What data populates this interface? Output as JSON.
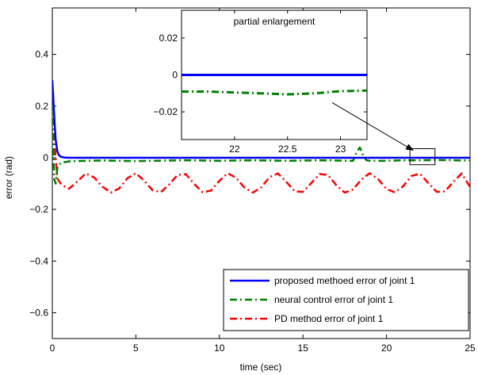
{
  "chart_data": {
    "type": "line",
    "xlabel": "time (sec)",
    "ylabel": "error (rad)",
    "xlim": [
      0,
      25
    ],
    "ylim": [
      -0.7,
      0.58
    ],
    "xticks": [
      0,
      5,
      10,
      15,
      20,
      25
    ],
    "xtick_labels": [
      "0",
      "5",
      "10",
      "15",
      "20",
      "25"
    ],
    "yticks": [
      -0.6,
      -0.4,
      -0.2,
      0,
      0.2,
      0.4
    ],
    "ytick_labels": [
      "−0.6",
      "−0.4",
      "−0.2",
      "0",
      "0.2",
      "0.4"
    ],
    "grid": false,
    "legend_position": "bottom-right",
    "series": [
      {
        "name": "proposed methoed error of joint 1",
        "color": "#0000ff",
        "style": "solid",
        "x": [
          0,
          0.05,
          0.1,
          0.15,
          0.2,
          0.3,
          0.4,
          0.5,
          0.7,
          1,
          2,
          5,
          10,
          15,
          20,
          25
        ],
        "y": [
          0.3,
          0.24,
          0.18,
          0.12,
          0.07,
          0.025,
          0.01,
          0.004,
          0.001,
          0,
          0,
          0,
          0,
          0,
          0,
          0
        ]
      },
      {
        "name": "neural control error of joint 1",
        "color": "#008000",
        "style": "dash-dot",
        "x": [
          0,
          0.1,
          0.2,
          0.3,
          0.5,
          1,
          1.5,
          2,
          3,
          4,
          5,
          6,
          7,
          8,
          9,
          10,
          11,
          12,
          13,
          14,
          15,
          16,
          17,
          18,
          18.2,
          18.4,
          18.6,
          18.8,
          19,
          20,
          21,
          22,
          23,
          24,
          25
        ],
        "y": [
          0.27,
          -0.08,
          -0.1,
          -0.04,
          -0.02,
          -0.014,
          -0.013,
          -0.012,
          -0.011,
          -0.012,
          -0.013,
          -0.012,
          -0.011,
          -0.01,
          -0.011,
          -0.012,
          -0.011,
          -0.01,
          -0.011,
          -0.012,
          -0.011,
          -0.01,
          -0.011,
          -0.012,
          0.02,
          0.04,
          0.01,
          -0.01,
          -0.012,
          -0.012,
          -0.01,
          -0.01,
          -0.009,
          -0.01,
          -0.011
        ]
      },
      {
        "name": "PD method error of joint 1",
        "color": "#ff0000",
        "style": "dash-dot",
        "x": [
          0,
          0.1,
          0.2,
          0.3,
          0.5,
          0.7,
          1,
          1.5,
          2,
          2.5,
          3,
          3.5,
          4,
          4.5,
          5,
          5.5,
          6,
          6.5,
          7,
          7.5,
          8,
          8.5,
          9,
          9.5,
          10,
          10.5,
          11,
          11.5,
          12,
          12.5,
          13,
          13.5,
          14,
          14.5,
          15,
          15.5,
          16,
          16.5,
          17,
          17.5,
          18,
          18.5,
          19,
          19.5,
          20,
          20.5,
          21,
          21.5,
          22,
          22.5,
          23,
          23.5,
          24,
          24.5,
          25
        ],
        "y": [
          0.27,
          0.1,
          0.0,
          -0.08,
          -0.1,
          -0.11,
          -0.12,
          -0.092,
          -0.061,
          -0.076,
          -0.112,
          -0.135,
          -0.119,
          -0.079,
          -0.06,
          -0.089,
          -0.126,
          -0.133,
          -0.103,
          -0.066,
          -0.064,
          -0.102,
          -0.134,
          -0.127,
          -0.089,
          -0.06,
          -0.078,
          -0.116,
          -0.135,
          -0.115,
          -0.075,
          -0.061,
          -0.093,
          -0.13,
          -0.132,
          -0.098,
          -0.063,
          -0.067,
          -0.107,
          -0.135,
          -0.123,
          -0.084,
          -0.06,
          -0.083,
          -0.121,
          -0.134,
          -0.11,
          -0.07,
          -0.062,
          -0.098,
          -0.132,
          -0.13,
          -0.093,
          -0.061,
          -0.113
        ]
      }
    ],
    "inset": {
      "title": "partial enlargement",
      "xlim": [
        21.5,
        23.25
      ],
      "ylim": [
        -0.035,
        0.035
      ],
      "xticks": [
        22,
        22.5,
        23
      ],
      "xtick_labels": [
        "22",
        "22.5",
        "23"
      ],
      "yticks": [
        -0.02,
        0,
        0.02
      ],
      "ytick_labels": [
        "−0.02",
        "0",
        "0.02"
      ],
      "zoom_box": {
        "x": [
          21.4,
          22.9
        ],
        "y": [
          -0.027,
          0.035
        ]
      },
      "series": [
        {
          "color": "#0000ff",
          "style": "solid",
          "x": [
            21.5,
            22,
            22.5,
            23,
            23.25
          ],
          "y": [
            0,
            0,
            0,
            0,
            0
          ]
        },
        {
          "color": "#008000",
          "style": "dash-dot",
          "x": [
            21.5,
            21.75,
            22,
            22.25,
            22.5,
            22.75,
            23,
            23.25
          ],
          "y": [
            -0.009,
            -0.009,
            -0.0095,
            -0.01,
            -0.0105,
            -0.01,
            -0.0088,
            -0.0085
          ]
        }
      ]
    }
  }
}
